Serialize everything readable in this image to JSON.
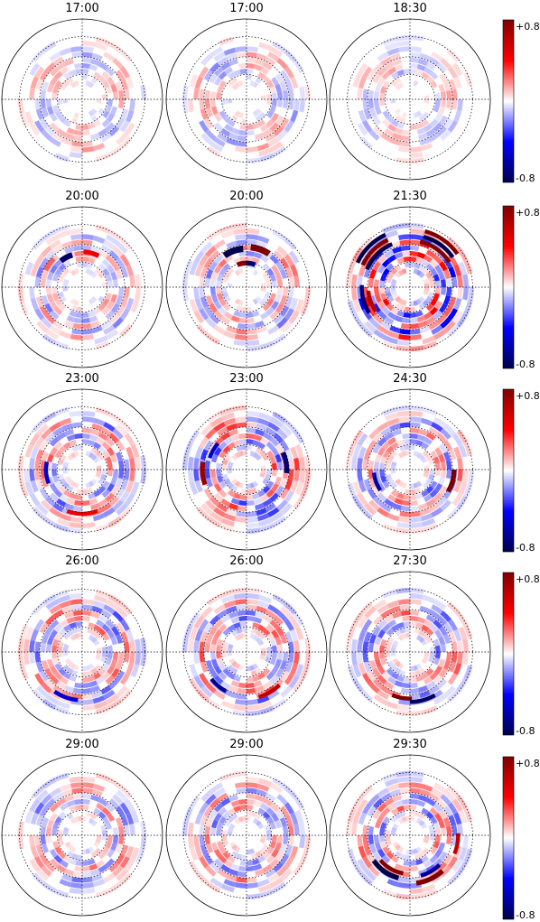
{
  "chart_data": {
    "type": "heatmap",
    "projection": "polar",
    "colormap": "seismic",
    "grid": true,
    "rows": [
      {
        "panels": [
          {
            "title": "17:00",
            "intensity": 0.18,
            "blobs": []
          },
          {
            "title": "17:00",
            "intensity": 0.2,
            "blobs": []
          },
          {
            "title": "18:30",
            "intensity": 0.16,
            "blobs": []
          }
        ],
        "colorbar": {
          "max_label": "+0.8",
          "min_label": "-0.8",
          "range": [
            -0.8,
            0.8
          ]
        }
      },
      {
        "panels": [
          {
            "title": "20:00",
            "intensity": 0.22,
            "blobs": [
              {
                "r": 0.42,
                "theta_deg": 118,
                "value": -0.75,
                "width": 0.07,
                "span_deg": 22
              },
              {
                "r": 0.44,
                "theta_deg": 75,
                "value": 0.45,
                "width": 0.06,
                "span_deg": 26
              },
              {
                "r": 0.5,
                "theta_deg": 145,
                "value": 0.25,
                "width": 0.06,
                "span_deg": 20
              }
            ]
          },
          {
            "title": "20:00",
            "intensity": 0.24,
            "blobs": [
              {
                "r": 0.48,
                "theta_deg": 110,
                "value": -0.8,
                "width": 0.08,
                "span_deg": 30
              },
              {
                "r": 0.5,
                "theta_deg": 70,
                "value": 0.8,
                "width": 0.08,
                "span_deg": 28
              },
              {
                "r": 0.3,
                "theta_deg": 100,
                "value": 0.75,
                "width": 0.06,
                "span_deg": 25
              },
              {
                "r": 0.3,
                "theta_deg": 80,
                "value": -0.7,
                "width": 0.06,
                "span_deg": 22
              }
            ]
          },
          {
            "title": "21:30",
            "intensity": 0.45,
            "blobs": [
              {
                "r": 0.72,
                "theta_deg": 135,
                "value": -0.8,
                "width": 0.05,
                "span_deg": 40
              },
              {
                "r": 0.65,
                "theta_deg": 135,
                "value": 0.8,
                "width": 0.05,
                "span_deg": 40
              },
              {
                "r": 0.58,
                "theta_deg": 135,
                "value": -0.8,
                "width": 0.05,
                "span_deg": 45
              },
              {
                "r": 0.72,
                "theta_deg": 55,
                "value": 0.8,
                "width": 0.05,
                "span_deg": 40
              },
              {
                "r": 0.65,
                "theta_deg": 55,
                "value": -0.8,
                "width": 0.05,
                "span_deg": 40
              },
              {
                "r": 0.58,
                "theta_deg": 55,
                "value": 0.8,
                "width": 0.05,
                "span_deg": 45
              },
              {
                "r": 0.6,
                "theta_deg": 195,
                "value": -0.7,
                "width": 0.05,
                "span_deg": 35
              },
              {
                "r": 0.52,
                "theta_deg": 200,
                "value": 0.6,
                "width": 0.05,
                "span_deg": 30
              }
            ]
          }
        ],
        "colorbar": {
          "max_label": "+0.8",
          "min_label": "-0.8",
          "range": [
            -0.8,
            0.8
          ]
        }
      },
      {
        "panels": [
          {
            "title": "23:00",
            "intensity": 0.3,
            "blobs": [
              {
                "r": 0.55,
                "theta_deg": 270,
                "value": 0.45,
                "width": 0.05,
                "span_deg": 40
              },
              {
                "r": 0.45,
                "theta_deg": 185,
                "value": -0.5,
                "width": 0.05,
                "span_deg": 35
              }
            ]
          },
          {
            "title": "23:00",
            "intensity": 0.35,
            "blobs": [
              {
                "r": 0.55,
                "theta_deg": 185,
                "value": 0.7,
                "width": 0.06,
                "span_deg": 30
              },
              {
                "r": 0.5,
                "theta_deg": 10,
                "value": -0.7,
                "width": 0.06,
                "span_deg": 30
              },
              {
                "r": 0.48,
                "theta_deg": 150,
                "value": -0.55,
                "width": 0.05,
                "span_deg": 25
              }
            ]
          },
          {
            "title": "24:30",
            "intensity": 0.3,
            "blobs": [
              {
                "r": 0.55,
                "theta_deg": 345,
                "value": 0.8,
                "width": 0.06,
                "span_deg": 30
              },
              {
                "r": 0.45,
                "theta_deg": 200,
                "value": -0.6,
                "width": 0.05,
                "span_deg": 30
              }
            ]
          }
        ],
        "colorbar": {
          "max_label": "+0.8",
          "min_label": "-0.8",
          "range": [
            -0.8,
            0.8
          ]
        }
      },
      {
        "panels": [
          {
            "title": "26:00",
            "intensity": 0.3,
            "blobs": [
              {
                "r": 0.6,
                "theta_deg": 250,
                "value": -0.5,
                "width": 0.05,
                "span_deg": 30
              }
            ]
          },
          {
            "title": "26:00",
            "intensity": 0.32,
            "blobs": [
              {
                "r": 0.55,
                "theta_deg": 230,
                "value": -0.65,
                "width": 0.05,
                "span_deg": 25
              },
              {
                "r": 0.58,
                "theta_deg": 300,
                "value": 0.6,
                "width": 0.05,
                "span_deg": 30
              }
            ]
          },
          {
            "title": "27:30",
            "intensity": 0.3,
            "blobs": [
              {
                "r": 0.58,
                "theta_deg": 260,
                "value": 0.8,
                "width": 0.05,
                "span_deg": 25
              },
              {
                "r": 0.62,
                "theta_deg": 285,
                "value": -0.75,
                "width": 0.05,
                "span_deg": 30
              }
            ]
          }
        ],
        "colorbar": {
          "max_label": "+0.8",
          "min_label": "-0.8",
          "range": [
            -0.8,
            0.8
          ]
        }
      },
      {
        "panels": [
          {
            "title": "29:00",
            "intensity": 0.25,
            "blobs": []
          },
          {
            "title": "29:00",
            "intensity": 0.28,
            "blobs": []
          },
          {
            "title": "29:30",
            "intensity": 0.3,
            "blobs": [
              {
                "r": 0.55,
                "theta_deg": 235,
                "value": -0.8,
                "width": 0.06,
                "span_deg": 40
              },
              {
                "r": 0.48,
                "theta_deg": 240,
                "value": 0.8,
                "width": 0.05,
                "span_deg": 40
              },
              {
                "r": 0.6,
                "theta_deg": 295,
                "value": 0.8,
                "width": 0.06,
                "span_deg": 35
              },
              {
                "r": 0.52,
                "theta_deg": 300,
                "value": -0.6,
                "width": 0.05,
                "span_deg": 30
              },
              {
                "r": 0.6,
                "theta_deg": 350,
                "value": 0.6,
                "width": 0.05,
                "span_deg": 25
              }
            ]
          }
        ],
        "colorbar": {
          "max_label": "+0.8",
          "min_label": "-0.8",
          "range": [
            -0.8,
            0.8
          ]
        }
      }
    ]
  }
}
